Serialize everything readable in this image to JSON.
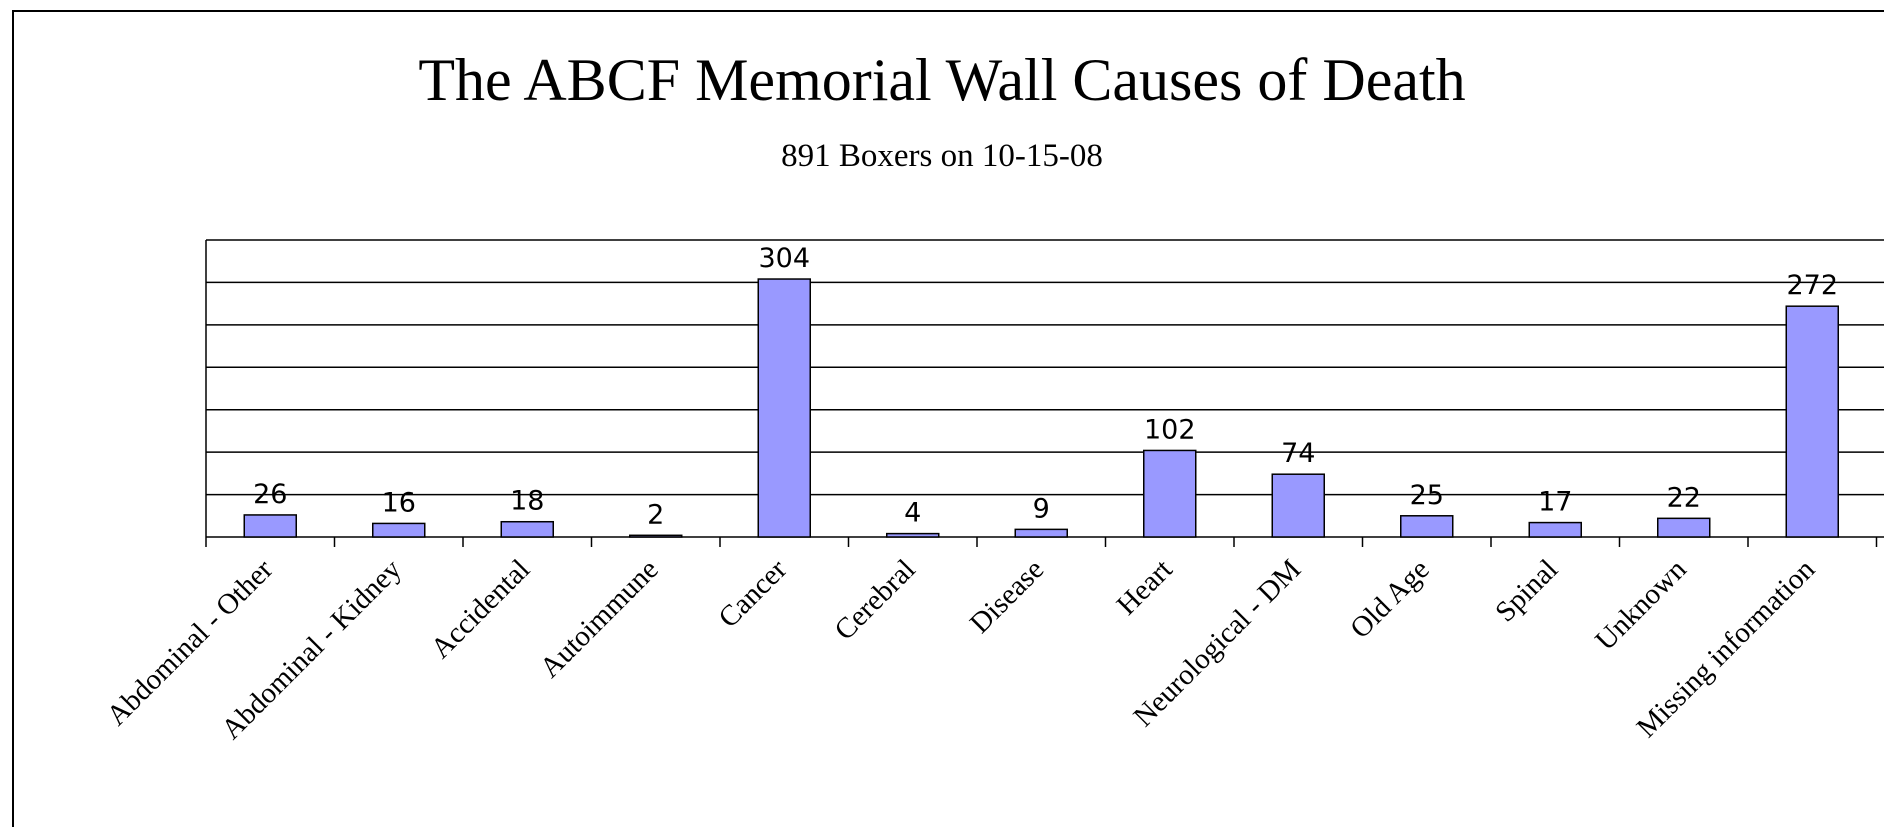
{
  "chart_data": {
    "type": "bar",
    "title": "The ABCF Memorial Wall Causes of Death",
    "subtitle": "891 Boxers on 10-15-08",
    "categories": [
      "Abdominal - Other",
      "Abdominal - Kidney",
      "Accidental",
      "Autoimmune",
      "Cancer",
      "Cerebral",
      "Disease",
      "Heart",
      "Neurological - DM",
      "Old Age",
      "Spinal",
      "Unknown",
      "Missing information"
    ],
    "values": [
      26,
      16,
      18,
      2,
      304,
      4,
      9,
      102,
      74,
      25,
      17,
      22,
      272
    ],
    "data_labels": [
      "26",
      "16",
      "18",
      "2",
      "304",
      "4",
      "9",
      "102",
      "74",
      "25",
      "17",
      "22",
      "272"
    ],
    "ylim": [
      0,
      350
    ],
    "grid": true,
    "legend": "none",
    "bar_color": "#9999ff",
    "bar_edge_color": "#000000"
  }
}
